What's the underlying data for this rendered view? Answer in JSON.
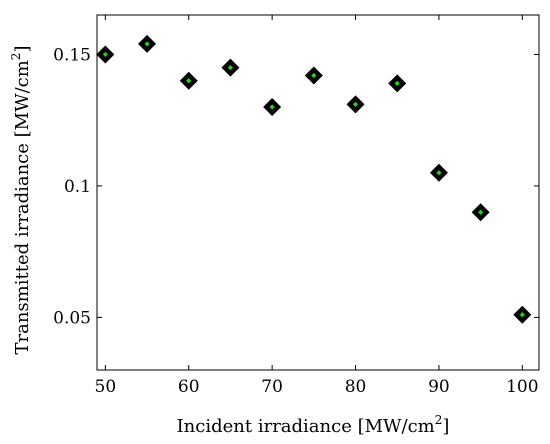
{
  "chart_data": {
    "type": "scatter",
    "title": "",
    "xlabel": "Incident irradiance [MW/cm",
    "xlabel_sup": "2",
    "xlabel_end": "]",
    "ylabel": "Transmitted irradiance [MW/cm",
    "ylabel_sup": "2",
    "ylabel_end": "]",
    "xlim": [
      49,
      102
    ],
    "ylim": [
      0.03,
      0.165
    ],
    "xticks": [
      50,
      60,
      70,
      80,
      90,
      100
    ],
    "yticks": [
      0.05,
      0.1,
      0.15
    ],
    "xtick_labels": [
      "50",
      "60",
      "70",
      "80",
      "90",
      "100"
    ],
    "ytick_labels": [
      "0.05",
      "0.1",
      "0.15"
    ],
    "grid": false,
    "series": [
      {
        "marker": "diamond",
        "marker_outer_color": "#000000",
        "marker_inner_color": "#2ecc1f",
        "x": [
          50,
          55,
          60,
          65,
          70,
          75,
          80,
          85,
          90,
          95,
          100
        ],
        "y": [
          0.15,
          0.154,
          0.14,
          0.145,
          0.13,
          0.142,
          0.131,
          0.139,
          0.105,
          0.09,
          0.051
        ]
      }
    ]
  }
}
